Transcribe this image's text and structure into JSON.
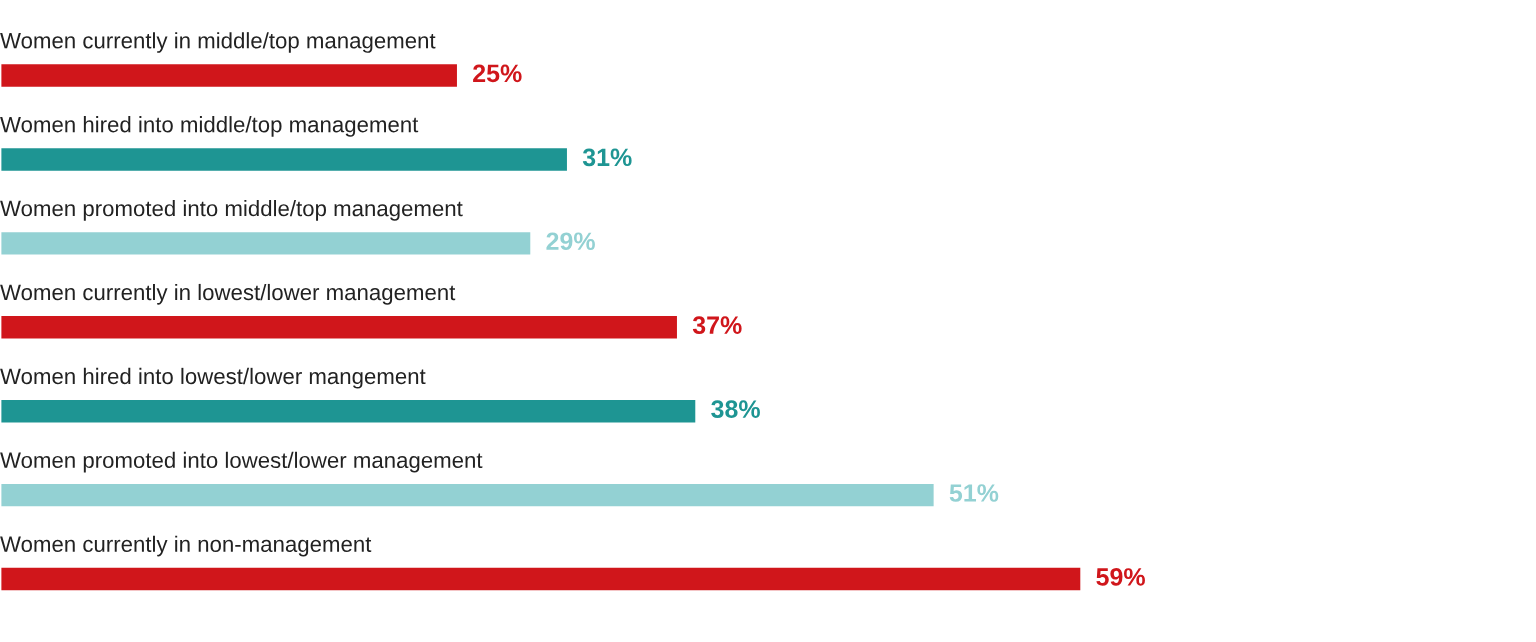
{
  "chart_data": {
    "type": "bar",
    "orientation": "horizontal",
    "data_labels": true,
    "categories": [
      "Women currently in middle/top management",
      "Women hired into middle/top management",
      "Women promoted into middle/top management",
      "Women currently in lowest/lower management",
      "Women hired into lowest/lower mangement",
      "Women promoted into lowest/lower management",
      "Women currently in non-management"
    ],
    "values": [
      25,
      31,
      29,
      37,
      38,
      51,
      59
    ],
    "colors": [
      "#d0161b",
      "#1e9593",
      "#93d1d3",
      "#d0161b",
      "#1e9593",
      "#93d1d3",
      "#d0161b"
    ],
    "value_labels": [
      "25%",
      "31%",
      "29%",
      "37%",
      "38%",
      "51%",
      "59%"
    ]
  }
}
